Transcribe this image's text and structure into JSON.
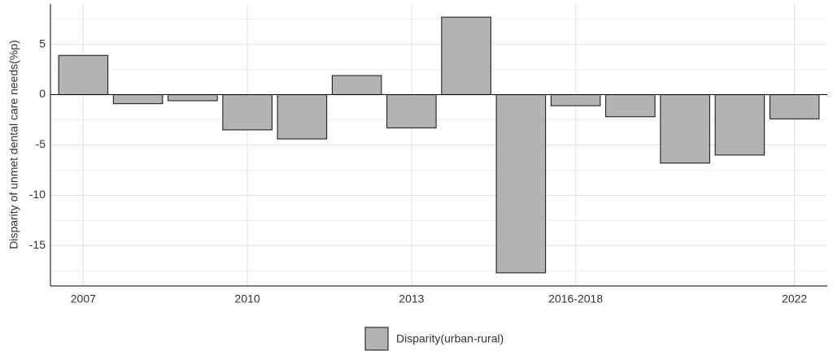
{
  "chart_data": {
    "type": "bar",
    "y_label": "Disparity of unmet dental care needs(%p)",
    "categories": [
      "2007",
      null,
      null,
      "2010",
      null,
      null,
      "2013",
      null,
      null,
      "2016-2018",
      null,
      null,
      null,
      "2022"
    ],
    "series": [
      {
        "name": "Disparity(urban-rural)",
        "color": "#b3b3b3",
        "values": [
          3.9,
          -0.9,
          -0.6,
          -3.5,
          -4.4,
          1.9,
          -3.3,
          7.7,
          -17.7,
          -1.1,
          -2.2,
          -6.8,
          -6.0,
          -2.4
        ]
      }
    ],
    "ylim": [
      -19,
      9
    ],
    "yticks": [
      -15,
      -10,
      -5,
      0,
      5
    ],
    "grid": true,
    "legend": "bottom"
  }
}
